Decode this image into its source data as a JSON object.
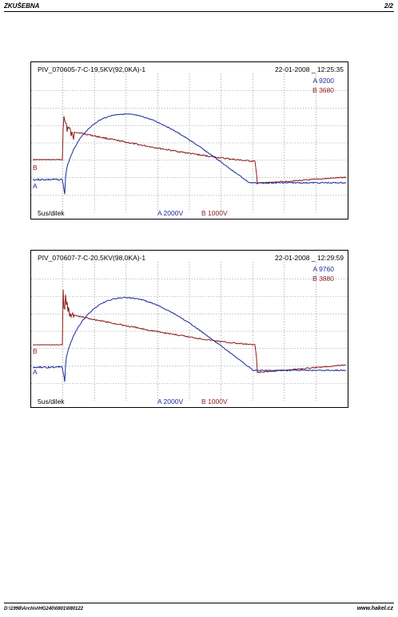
{
  "header": {
    "title": "ZKUŠEBNA",
    "page": "2/2"
  },
  "footer": {
    "path": "D:\\1998\\Archiv\\HG240\\0801\\080122",
    "web": "www.hakel.cz"
  },
  "colors": {
    "channel_a": "#1a2a9a",
    "channel_b": "#8a1a1a",
    "grid": "#6e6e6e"
  },
  "scopes": [
    {
      "title": "PIV_070605-7-C-19,5KV(92,0KA)-1",
      "timestamp": "22-01-2008 _ 12:25:35",
      "a_max": "A 9200",
      "b_max": "B 3680",
      "time_div": "5us/dilek",
      "a_scale": "A 2000V",
      "b_scale": "B 1000V",
      "a_label": "A",
      "b_label": "B"
    },
    {
      "title": "PIV_070607-7-C-20,5KV(98,0KA)-1",
      "timestamp": "22-01-2008 _ 12:29:59",
      "a_max": "A 9760",
      "b_max": "B 3880",
      "time_div": "5us/dilek",
      "a_scale": "A 2000V",
      "b_scale": "B 1000V",
      "a_label": "A",
      "b_label": "B"
    }
  ]
}
